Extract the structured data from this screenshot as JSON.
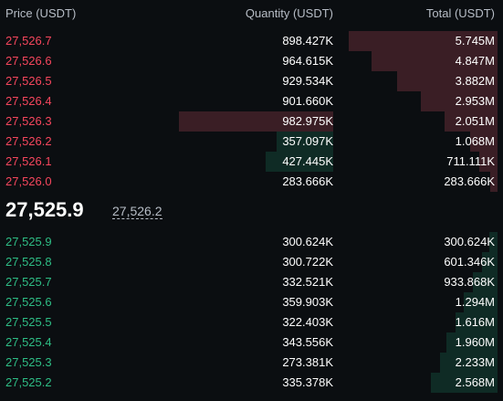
{
  "header": {
    "price": "Price (USDT)",
    "quantity": "Quantity (USDT)",
    "total": "Total (USDT)"
  },
  "colors": {
    "ask": "#f6465d",
    "bid": "#2ebd85",
    "ask_depth": "#3a1e25",
    "bid_depth": "#0f2b25",
    "background": "#0b0e11"
  },
  "asks": [
    {
      "price": "27,526.7",
      "quantity": "898.427K",
      "total": "5.745M"
    },
    {
      "price": "27,526.6",
      "quantity": "964.615K",
      "total": "4.847M"
    },
    {
      "price": "27,526.5",
      "quantity": "929.534K",
      "total": "3.882M"
    },
    {
      "price": "27,526.4",
      "quantity": "901.660K",
      "total": "2.953M"
    },
    {
      "price": "27,526.3",
      "quantity": "982.975K",
      "total": "2.051M"
    },
    {
      "price": "27,526.2",
      "quantity": "357.097K",
      "total": "1.068M"
    },
    {
      "price": "27,526.1",
      "quantity": "427.445K",
      "total": "711.111K"
    },
    {
      "price": "27,526.0",
      "quantity": "283.666K",
      "total": "283.666K"
    }
  ],
  "mid": {
    "last_price": "27,525.9",
    "mark_price": "27,526.2"
  },
  "bids": [
    {
      "price": "27,525.9",
      "quantity": "300.624K",
      "total": "300.624K"
    },
    {
      "price": "27,525.8",
      "quantity": "300.722K",
      "total": "601.346K"
    },
    {
      "price": "27,525.7",
      "quantity": "332.521K",
      "total": "933.868K"
    },
    {
      "price": "27,525.6",
      "quantity": "359.903K",
      "total": "1.294M"
    },
    {
      "price": "27,525.5",
      "quantity": "322.403K",
      "total": "1.616M"
    },
    {
      "price": "27,525.4",
      "quantity": "343.556K",
      "total": "1.960M"
    },
    {
      "price": "27,525.3",
      "quantity": "273.381K",
      "total": "2.233M"
    },
    {
      "price": "27,525.2",
      "quantity": "335.378K",
      "total": "2.568M"
    }
  ]
}
